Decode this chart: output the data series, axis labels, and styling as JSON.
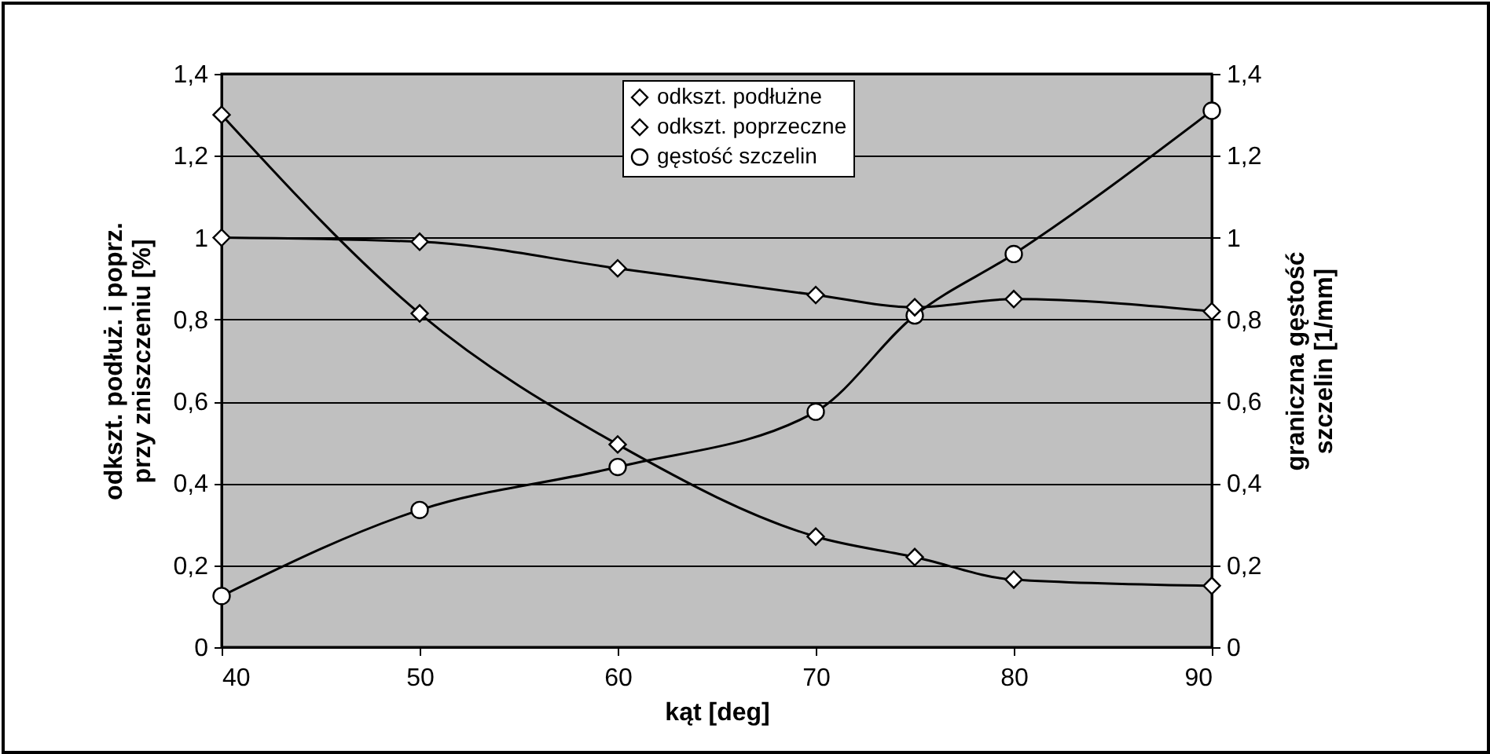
{
  "chart_data": {
    "type": "line",
    "xlabel": "kąt  [deg]",
    "ylabel": "odkszt. podłuż. i poprz.\nprzy zniszczeniu  [%]",
    "y2label": "graniczna gęstość\nszczelin [1/mm]",
    "x": [
      40,
      50,
      60,
      70,
      75,
      80,
      90
    ],
    "series": [
      {
        "name": "odkszt. podłużne",
        "color": "#000000",
        "marker": "diamond",
        "values": [
          1.0,
          0.99,
          0.925,
          0.86,
          0.83,
          0.85,
          0.82
        ]
      },
      {
        "name": "odkszt. poprzeczne",
        "color": "#000000",
        "marker": "diamond",
        "values": [
          1.3,
          0.815,
          0.495,
          0.27,
          0.22,
          0.165,
          0.15
        ]
      },
      {
        "name": "gęstość szczelin",
        "color": "#000000",
        "marker": "circle",
        "axis": "y2",
        "values": [
          0.125,
          0.335,
          0.44,
          0.575,
          0.81,
          0.96,
          1.31
        ]
      }
    ],
    "xlim": [
      40,
      90
    ],
    "xticks": [
      40,
      50,
      60,
      70,
      80,
      90
    ],
    "ylim": [
      0,
      1.4
    ],
    "yticks": [
      0,
      {
        "value": 0.2,
        "label": "0,2"
      },
      {
        "value": 0.4,
        "label": "0,4"
      },
      {
        "value": 0.6,
        "label": "0,6"
      },
      {
        "value": 0.8,
        "label": "0,8"
      },
      1,
      {
        "value": 1.2,
        "label": "1,2"
      },
      {
        "value": 1.4,
        "label": "1,4"
      }
    ],
    "y2lim": [
      0,
      1.4
    ],
    "y2ticks": [
      0,
      {
        "value": 0.2,
        "label": "0,2"
      },
      {
        "value": 0.4,
        "label": "0,4"
      },
      {
        "value": 0.6,
        "label": "0,6"
      },
      {
        "value": 0.8,
        "label": "0,8"
      },
      1,
      {
        "value": 1.2,
        "label": "1,2"
      },
      {
        "value": 1.4,
        "label": "1,4"
      }
    ],
    "grid": "y",
    "legend": "top",
    "line_style": "solid"
  }
}
